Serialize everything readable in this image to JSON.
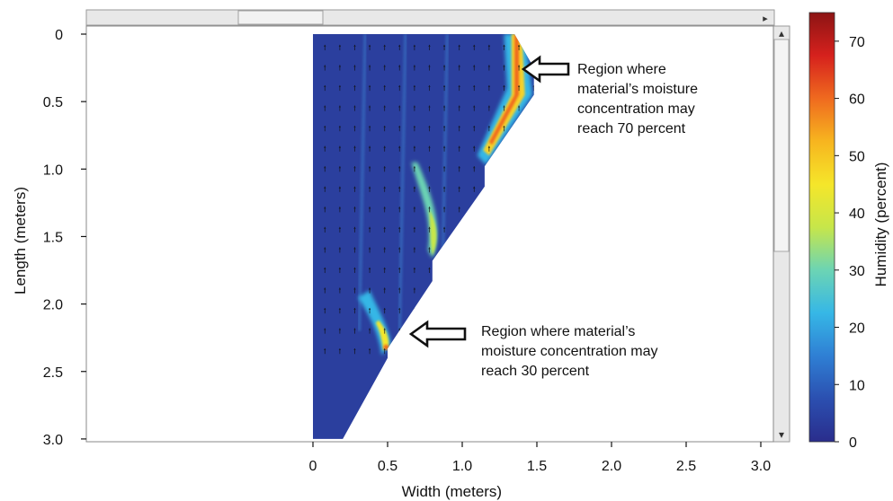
{
  "chart_data": {
    "type": "heatmap",
    "title": "",
    "xlabel": "Width (meters)",
    "ylabel": "Length (meters)",
    "xlim": [
      0,
      3.0
    ],
    "ylim": [
      0,
      3.0
    ],
    "y_inverted": true,
    "x_ticks": [
      "0",
      "0.5",
      "1.0",
      "1.5",
      "2.0",
      "2.5",
      "3.0"
    ],
    "y_ticks": [
      "0",
      "0.5",
      "1.0",
      "1.5",
      "2.0",
      "2.5",
      "3.0"
    ],
    "grid": false,
    "domain_outline": [
      {
        "x": 0.0,
        "y": 0.0
      },
      {
        "x": 1.35,
        "y": 0.0
      },
      {
        "x": 1.48,
        "y": 0.25
      },
      {
        "x": 1.48,
        "y": 0.45
      },
      {
        "x": 1.15,
        "y": 0.98
      },
      {
        "x": 1.15,
        "y": 1.13
      },
      {
        "x": 0.8,
        "y": 1.68
      },
      {
        "x": 0.8,
        "y": 1.83
      },
      {
        "x": 0.5,
        "y": 2.33
      },
      {
        "x": 0.5,
        "y": 2.4
      },
      {
        "x": 0.2,
        "y": 3.0
      },
      {
        "x": 0.0,
        "y": 3.0
      }
    ],
    "colorbar": {
      "label": "Humidity (percent)",
      "range": [
        0,
        75
      ],
      "ticks": [
        "0",
        "10",
        "20",
        "30",
        "40",
        "50",
        "60",
        "70"
      ],
      "colors": [
        "#2a2d8c",
        "#2b4fb0",
        "#2f7fd4",
        "#36b7e6",
        "#6cd4b4",
        "#c7e64a",
        "#f5e62a",
        "#f7b51f",
        "#ef6a1f",
        "#d6211d",
        "#8c1414"
      ]
    },
    "annotations": [
      {
        "text_lines": [
          "Region where",
          "material’s moisture",
          "concentration may",
          "reach 70 percent"
        ],
        "points_to": {
          "x": 1.45,
          "y": 0.3
        }
      },
      {
        "text_lines": [
          "Region where material’s",
          "moisture concentration may",
          "reach 30 percent"
        ],
        "points_to": {
          "x": 0.52,
          "y": 2.27
        }
      }
    ]
  },
  "ui": {
    "scroll_up_glyph": "▴",
    "scroll_down_glyph": "▾",
    "scroll_right_glyph": "▸"
  }
}
